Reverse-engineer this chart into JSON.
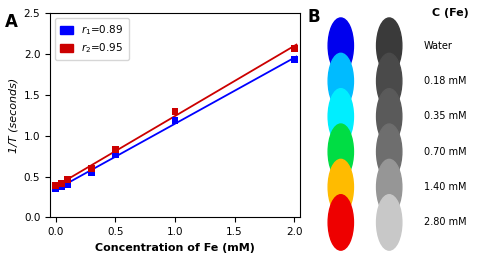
{
  "panel_A": {
    "r1_x": [
      0.0,
      0.05,
      0.1,
      0.3,
      0.5,
      1.0,
      2.0
    ],
    "r1_y": [
      0.35,
      0.38,
      0.4,
      0.55,
      0.77,
      1.19,
      1.93
    ],
    "r2_x": [
      0.0,
      0.05,
      0.1,
      0.3,
      0.5,
      1.0,
      2.0
    ],
    "r2_y": [
      0.39,
      0.42,
      0.46,
      0.6,
      0.83,
      1.3,
      2.07
    ],
    "r1_color": "#0000ff",
    "r2_color": "#cc0000",
    "xlabel": "Concentration of Fe (mM)",
    "ylabel": "1/T (seconds)",
    "xlim": [
      -0.05,
      2.05
    ],
    "ylim": [
      0,
      2.5
    ],
    "xticks": [
      0.0,
      0.5,
      1.0,
      1.5,
      2.0
    ],
    "yticks": [
      0.0,
      0.5,
      1.0,
      1.5,
      2.0,
      2.5
    ],
    "legend_r1": "$r_1$=0.89",
    "legend_r2": "$r_2$=0.95",
    "marker": "s",
    "marker_size": 5
  },
  "panel_B": {
    "title": "C (Fe)",
    "labels": [
      "Water",
      "0.18 mM",
      "0.35 mM",
      "0.70 mM",
      "1.40 mM",
      "2.80 mM"
    ],
    "left_colors": [
      "#0000ee",
      "#00bbff",
      "#00eeff",
      "#00dd44",
      "#ffbb00",
      "#ee0000"
    ],
    "right_grays": [
      "#3a3a3a",
      "#4a4a4a",
      "#5a5a5a",
      "#6e6e6e",
      "#969696",
      "#c8c8c8"
    ],
    "background": "#000000"
  }
}
